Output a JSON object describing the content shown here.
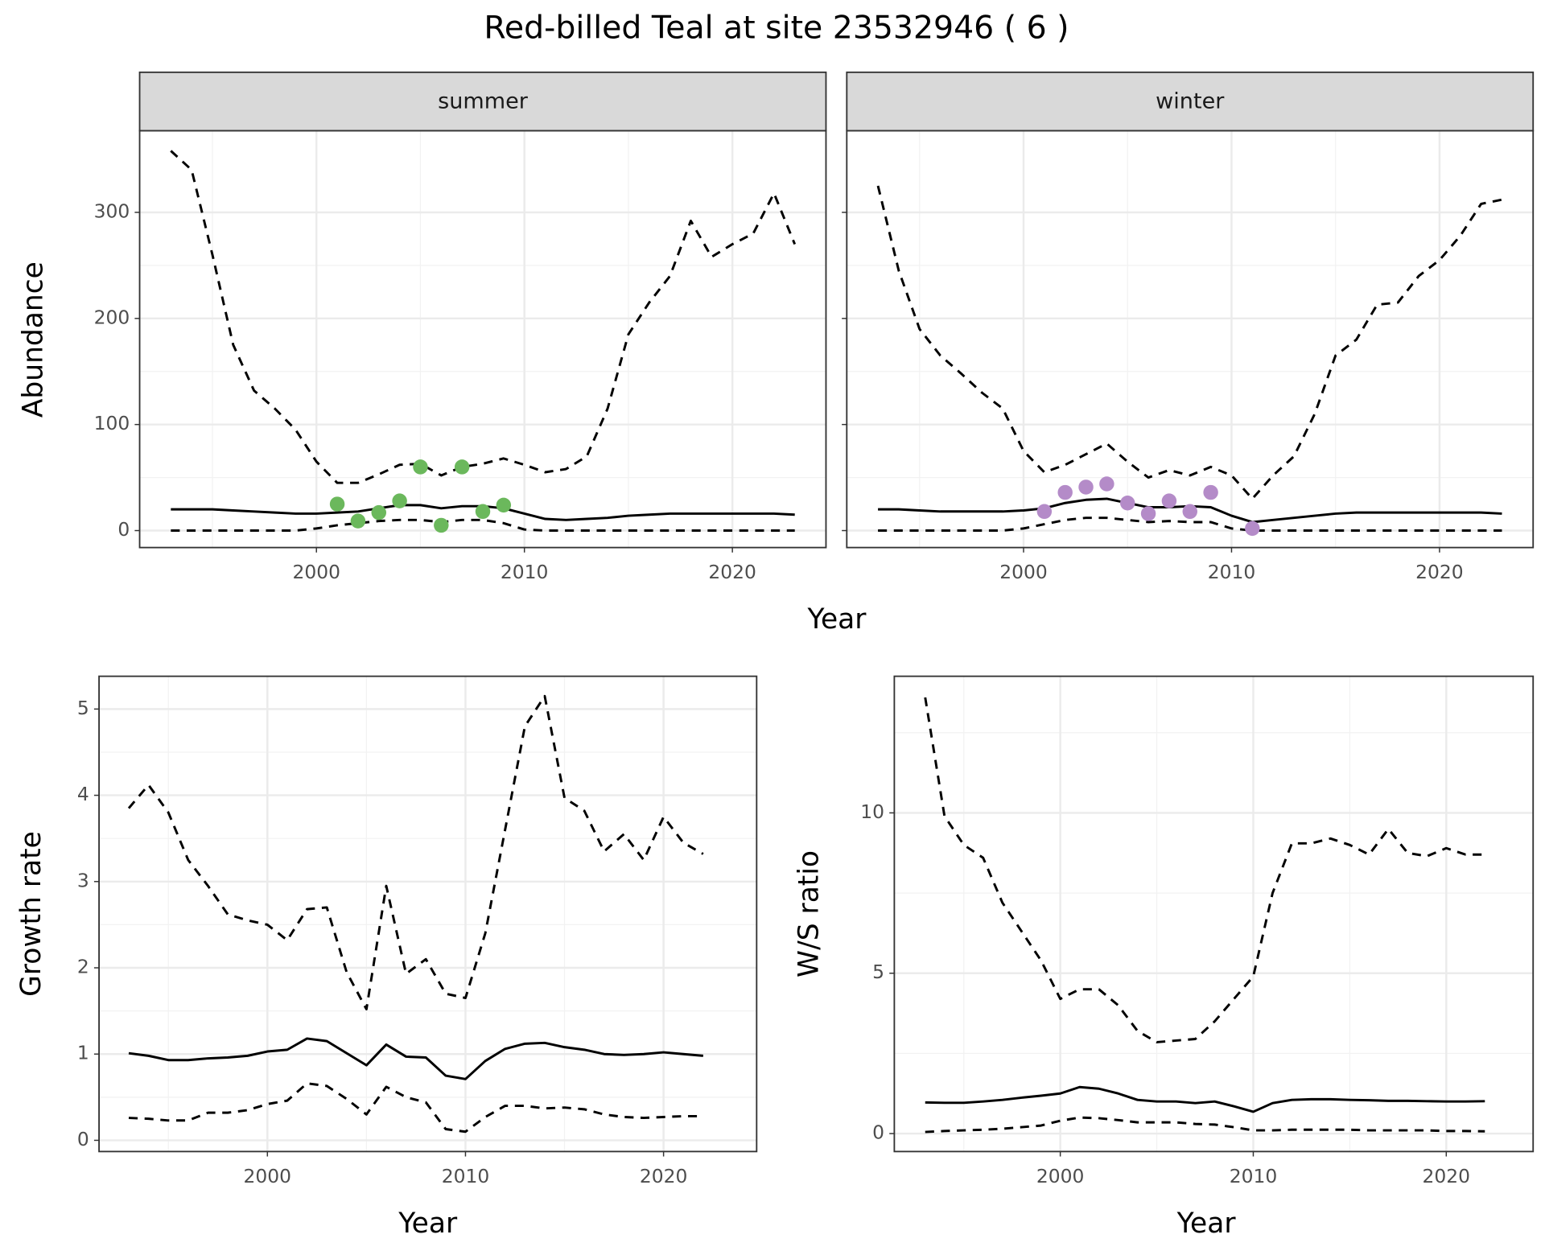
{
  "title": "Red-billed Teal at site 23532946 ( 6 )",
  "chart_data": [
    {
      "type": "line",
      "x_label": "Year",
      "y_label": "Abundance",
      "xlim": [
        1991.5,
        2024.5
      ],
      "ylim": [
        -16,
        377
      ],
      "xticks": [
        2000,
        2010,
        2020
      ],
      "yticks": [
        0,
        100,
        200,
        300
      ],
      "xminor": [
        1995,
        2005,
        2015
      ],
      "yminor": [
        50,
        150,
        250
      ],
      "grid": true,
      "x": [
        1993,
        1994,
        1995,
        1996,
        1997,
        1998,
        1999,
        2000,
        2001,
        2002,
        2003,
        2004,
        2005,
        2006,
        2007,
        2008,
        2009,
        2010,
        2011,
        2012,
        2013,
        2014,
        2015,
        2016,
        2017,
        2018,
        2019,
        2020,
        2021,
        2022,
        2023
      ],
      "panels": [
        {
          "strip": "summer",
          "series": [
            {
              "color": "#000000",
              "style": "dashed",
              "values": [
                358,
                340,
                260,
                175,
                132,
                115,
                95,
                65,
                45,
                45,
                53,
                62,
                63,
                52,
                60,
                63,
                68,
                62,
                55,
                58,
                70,
                115,
                185,
                215,
                240,
                292,
                258,
                270,
                280,
                318,
                270
              ]
            },
            {
              "color": "#000000",
              "style": "solid",
              "values": [
                20,
                20,
                20,
                19,
                18,
                17,
                16,
                16,
                17,
                18,
                21,
                24,
                24,
                21,
                23,
                23,
                21,
                16,
                11,
                10,
                11,
                12,
                14,
                15,
                16,
                16,
                16,
                16,
                16,
                16,
                15
              ]
            },
            {
              "color": "#000000",
              "style": "dashed",
              "values": [
                0,
                0,
                0,
                0,
                0,
                0,
                0,
                2,
                5,
                7,
                9,
                10,
                10,
                8,
                10,
                10,
                7,
                1,
                0,
                0,
                0,
                0,
                0,
                0,
                0,
                0,
                0,
                0,
                0,
                0,
                0
              ]
            }
          ],
          "points": {
            "color": "#6bb85c",
            "x": [
              2001,
              2002,
              2003,
              2004,
              2005,
              2006,
              2007,
              2008,
              2009
            ],
            "values": [
              25,
              9,
              17,
              28,
              60,
              5,
              60,
              18,
              24
            ]
          }
        },
        {
          "strip": "winter",
          "series": [
            {
              "color": "#000000",
              "style": "dashed",
              "values": [
                325,
                245,
                190,
                165,
                148,
                130,
                115,
                75,
                55,
                62,
                72,
                82,
                65,
                50,
                57,
                52,
                60,
                52,
                30,
                52,
                70,
                110,
                165,
                180,
                213,
                215,
                240,
                255,
                278,
                308,
                312
              ]
            },
            {
              "color": "#000000",
              "style": "solid",
              "values": [
                20,
                20,
                19,
                18,
                18,
                18,
                18,
                19,
                21,
                26,
                29,
                30,
                26,
                22,
                22,
                23,
                22,
                14,
                8,
                10,
                12,
                14,
                16,
                17,
                17,
                17,
                17,
                17,
                17,
                17,
                16
              ]
            },
            {
              "color": "#000000",
              "style": "dashed",
              "values": [
                0,
                0,
                0,
                0,
                0,
                0,
                0,
                2,
                6,
                10,
                12,
                12,
                10,
                8,
                9,
                8,
                8,
                2,
                0,
                0,
                0,
                0,
                0,
                0,
                0,
                0,
                0,
                0,
                0,
                0,
                0
              ]
            }
          ],
          "points": {
            "color": "#b48bc8",
            "x": [
              2001,
              2002,
              2003,
              2004,
              2005,
              2006,
              2007,
              2008,
              2009,
              2011
            ],
            "values": [
              18,
              36,
              41,
              44,
              26,
              16,
              28,
              18,
              36,
              2
            ]
          }
        }
      ]
    },
    {
      "type": "line",
      "x_label": "Year",
      "y_label": "Growth rate",
      "xlim": [
        1991.5,
        2024.7
      ],
      "ylim": [
        -0.13,
        5.38
      ],
      "xticks": [
        2000,
        2010,
        2020
      ],
      "yticks": [
        0,
        1,
        2,
        3,
        4,
        5
      ],
      "xminor": [
        1995,
        2005,
        2015
      ],
      "yminor": [
        0.5,
        1.5,
        2.5,
        3.5,
        4.5
      ],
      "grid": true,
      "x": [
        1993,
        1994,
        1995,
        1996,
        1997,
        1998,
        1999,
        2000,
        2001,
        2002,
        2003,
        2004,
        2005,
        2006,
        2007,
        2008,
        2009,
        2010,
        2011,
        2012,
        2013,
        2014,
        2015,
        2016,
        2017,
        2018,
        2019,
        2020,
        2021,
        2022
      ],
      "series": [
        {
          "color": "#000000",
          "style": "dashed",
          "values": [
            3.85,
            4.12,
            3.8,
            3.25,
            2.95,
            2.62,
            2.55,
            2.5,
            2.32,
            2.68,
            2.7,
            1.95,
            1.52,
            2.95,
            1.93,
            2.1,
            1.7,
            1.65,
            2.4,
            3.6,
            4.8,
            5.15,
            3.97,
            3.82,
            3.35,
            3.55,
            3.25,
            3.75,
            3.45,
            3.32
          ]
        },
        {
          "color": "#000000",
          "style": "solid",
          "values": [
            1.01,
            0.98,
            0.93,
            0.93,
            0.95,
            0.96,
            0.98,
            1.03,
            1.05,
            1.18,
            1.15,
            1.01,
            0.87,
            1.11,
            0.97,
            0.96,
            0.75,
            0.71,
            0.92,
            1.06,
            1.12,
            1.13,
            1.08,
            1.05,
            1.0,
            0.99,
            1.0,
            1.02,
            1.0,
            0.98
          ]
        },
        {
          "color": "#000000",
          "style": "dashed",
          "values": [
            0.26,
            0.25,
            0.23,
            0.23,
            0.32,
            0.32,
            0.35,
            0.42,
            0.46,
            0.66,
            0.63,
            0.48,
            0.3,
            0.62,
            0.5,
            0.44,
            0.13,
            0.1,
            0.27,
            0.4,
            0.4,
            0.37,
            0.38,
            0.36,
            0.3,
            0.27,
            0.26,
            0.27,
            0.28,
            0.28
          ]
        }
      ]
    },
    {
      "type": "line",
      "x_label": "Year",
      "y_label": "W/S ratio",
      "xlim": [
        1991.4,
        2024.5
      ],
      "ylim": [
        -0.56,
        14.26
      ],
      "xticks": [
        2000,
        2010,
        2020
      ],
      "yticks": [
        0,
        5,
        10
      ],
      "xminor": [
        1995,
        2005,
        2015
      ],
      "yminor": [
        2.5,
        7.5,
        12.5
      ],
      "grid": true,
      "x": [
        1993,
        1994,
        1995,
        1996,
        1997,
        1998,
        1999,
        2000,
        2001,
        2002,
        2003,
        2004,
        2005,
        2006,
        2007,
        2008,
        2009,
        2010,
        2011,
        2012,
        2013,
        2014,
        2015,
        2016,
        2017,
        2018,
        2019,
        2020,
        2021,
        2022
      ],
      "series": [
        {
          "color": "#000000",
          "style": "dashed",
          "values": [
            13.6,
            9.9,
            9.0,
            8.6,
            7.2,
            6.3,
            5.4,
            4.2,
            4.5,
            4.5,
            4.0,
            3.2,
            2.85,
            2.9,
            2.95,
            3.5,
            4.2,
            4.9,
            7.5,
            9.05,
            9.05,
            9.2,
            9.0,
            8.7,
            9.5,
            8.75,
            8.65,
            8.9,
            8.7,
            8.7
          ]
        },
        {
          "color": "#000000",
          "style": "solid",
          "values": [
            0.97,
            0.96,
            0.96,
            1.0,
            1.05,
            1.12,
            1.18,
            1.25,
            1.45,
            1.4,
            1.25,
            1.05,
            1.0,
            1.0,
            0.95,
            1.0,
            0.85,
            0.68,
            0.95,
            1.05,
            1.07,
            1.07,
            1.05,
            1.04,
            1.02,
            1.02,
            1.01,
            1.0,
            1.0,
            1.01
          ]
        },
        {
          "color": "#000000",
          "style": "dashed",
          "values": [
            0.05,
            0.08,
            0.1,
            0.12,
            0.15,
            0.2,
            0.25,
            0.4,
            0.5,
            0.48,
            0.42,
            0.35,
            0.35,
            0.35,
            0.3,
            0.28,
            0.2,
            0.1,
            0.1,
            0.12,
            0.12,
            0.12,
            0.12,
            0.1,
            0.1,
            0.1,
            0.1,
            0.08,
            0.08,
            0.07
          ]
        }
      ]
    }
  ]
}
